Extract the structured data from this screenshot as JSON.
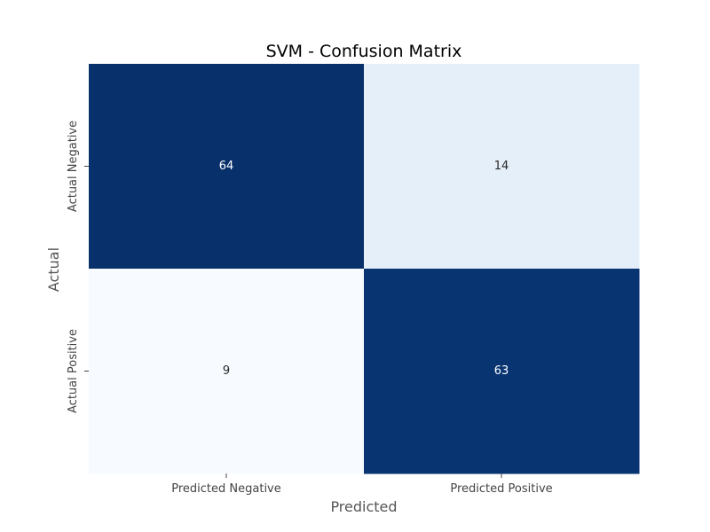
{
  "chart_data": {
    "type": "heatmap",
    "title": "SVM - Confusion Matrix",
    "xlabel": "Predicted",
    "ylabel": "Actual",
    "x_categories": [
      "Predicted Negative",
      "Predicted Positive"
    ],
    "y_categories": [
      "Actual Negative",
      "Actual Positive"
    ],
    "values": [
      [
        64,
        14
      ],
      [
        9,
        63
      ]
    ],
    "colormap": "Blues",
    "colorbar": false,
    "colors": {
      "low": "#f7fbff",
      "high": "#08306b",
      "text_on_dark": "#ffffff",
      "text_on_light": "#262626"
    }
  }
}
